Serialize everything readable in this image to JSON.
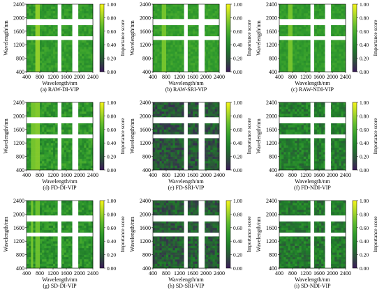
{
  "figure": {
    "colorscale": {
      "stops": [
        "#3b1a5a",
        "#2d4f3c",
        "#1f7a2a",
        "#2f9a2c",
        "#5cba2e",
        "#a8d82a",
        "#f5f51a"
      ],
      "range": [
        0,
        1
      ],
      "label": "Importance score",
      "tick_labels": [
        "1.00",
        "0.80",
        "0.60",
        "0.40",
        "0.20",
        "0.00"
      ],
      "tick_values": [
        1.0,
        0.8,
        0.6,
        0.4,
        0.2,
        0.0
      ]
    },
    "gap_color": "#ffffff"
  },
  "chart_data": [
    {
      "type": "heatmap",
      "panel": "a",
      "caption": "(a) RAW-DI-VIP",
      "xlabel": "Wavelength/nm",
      "ylabel": "Wavelength/nm",
      "xlim": [
        400,
        2400
      ],
      "ylim": [
        400,
        2400
      ],
      "xticks": [
        "400",
        "800",
        "1200",
        "1600",
        "2000",
        "2400"
      ],
      "yticks": [
        "400",
        "800",
        "1200",
        "1600",
        "2000",
        "2400"
      ],
      "masked_bands": [
        [
          1340,
          1450
        ],
        [
          1780,
          1960
        ]
      ],
      "base_score": 0.5,
      "noise": 0.08,
      "stripes": [
        [
          700,
          0.9
        ],
        [
          720,
          0.78
        ]
      ]
    },
    {
      "type": "heatmap",
      "panel": "b",
      "caption": "(b) RAW-SRI-VIP",
      "xlabel": "Wavelength/nm",
      "ylabel": "Wavelength/nm",
      "xlim": [
        400,
        2400
      ],
      "ylim": [
        400,
        2400
      ],
      "xticks": [
        "400",
        "800",
        "1200",
        "1600",
        "2000",
        "2400"
      ],
      "yticks": [
        "400",
        "800",
        "1200",
        "1600",
        "2000",
        "2400"
      ],
      "masked_bands": [
        [
          1340,
          1450
        ],
        [
          1780,
          1960
        ]
      ],
      "base_score": 0.52,
      "noise": 0.06,
      "stripes": [
        [
          700,
          0.82
        ],
        [
          720,
          0.72
        ]
      ]
    },
    {
      "type": "heatmap",
      "panel": "c",
      "caption": "(c) RAW-NDI-VIP",
      "xlabel": "Wavelength/nm",
      "ylabel": "Wavelength/nm",
      "xlim": [
        400,
        2400
      ],
      "ylim": [
        400,
        2400
      ],
      "xticks": [
        "400",
        "800",
        "1200",
        "1600",
        "2000",
        "2400"
      ],
      "yticks": [
        "400",
        "800",
        "1200",
        "1600",
        "2000",
        "2400"
      ],
      "masked_bands": [
        [
          1340,
          1450
        ],
        [
          1780,
          1960
        ]
      ],
      "base_score": 0.5,
      "noise": 0.06,
      "stripes": [
        [
          700,
          0.82
        ],
        [
          720,
          0.72
        ]
      ]
    },
    {
      "type": "heatmap",
      "panel": "d",
      "caption": "(d) FD-DI-VIP",
      "xlabel": "Wavelength/nm",
      "ylabel": "Wavelength/nm",
      "xlim": [
        400,
        2400
      ],
      "ylim": [
        400,
        2400
      ],
      "xticks": [
        "400",
        "800",
        "1200",
        "1600",
        "2000",
        "2400"
      ],
      "yticks": [
        "400",
        "800",
        "1200",
        "1600",
        "2000",
        "2400"
      ],
      "masked_bands": [
        [
          1340,
          1450
        ],
        [
          1780,
          1960
        ]
      ],
      "base_score": 0.48,
      "noise": 0.12,
      "stripes": [
        [
          560,
          0.7
        ],
        [
          600,
          0.72
        ],
        [
          700,
          0.85
        ],
        [
          740,
          0.75
        ]
      ]
    },
    {
      "type": "heatmap",
      "panel": "e",
      "caption": "(e) FD-SRI-VIP",
      "xlabel": "Wavelength/nm",
      "ylabel": "Wavelength/nm",
      "xlim": [
        400,
        2400
      ],
      "ylim": [
        400,
        2400
      ],
      "xticks": [
        "400",
        "800",
        "1200",
        "1600",
        "2000",
        "2400"
      ],
      "yticks": [
        "400",
        "800",
        "1200",
        "1600",
        "2000",
        "2400"
      ],
      "masked_bands": [
        [
          1340,
          1450
        ],
        [
          1780,
          1960
        ]
      ],
      "base_score": 0.2,
      "noise": 0.14,
      "stripes": []
    },
    {
      "type": "heatmap",
      "panel": "f",
      "caption": "(f) FD-NDI-VIP",
      "xlabel": "Wavelength/nm",
      "ylabel": "Wavelength/nm",
      "xlim": [
        400,
        2400
      ],
      "ylim": [
        400,
        2400
      ],
      "xticks": [
        "400",
        "800",
        "1200",
        "1600",
        "2000",
        "2400"
      ],
      "yticks": [
        "400",
        "800",
        "1200",
        "1600",
        "2000",
        "2400"
      ],
      "masked_bands": [
        [
          1340,
          1450
        ],
        [
          1780,
          1960
        ]
      ],
      "base_score": 0.36,
      "noise": 0.14,
      "stripes": []
    },
    {
      "type": "heatmap",
      "panel": "g",
      "caption": "(g) SD-DI-VIP",
      "xlabel": "Wavelength/nm",
      "ylabel": "Wavelength/nm",
      "xlim": [
        400,
        2400
      ],
      "ylim": [
        400,
        2400
      ],
      "xticks": [
        "400",
        "800",
        "1200",
        "1600",
        "2000",
        "2400"
      ],
      "yticks": [
        "400",
        "800",
        "1200",
        "1600",
        "2000",
        "2400"
      ],
      "masked_bands": [
        [
          1340,
          1450
        ],
        [
          1780,
          1960
        ]
      ],
      "base_score": 0.46,
      "noise": 0.12,
      "stripes": [
        [
          560,
          0.72
        ],
        [
          700,
          0.88
        ],
        [
          740,
          0.7
        ]
      ]
    },
    {
      "type": "heatmap",
      "panel": "h",
      "caption": "(h) SD-SRI-VIP",
      "xlabel": "Wavelength/nm",
      "ylabel": "Wavelength/nm",
      "xlim": [
        400,
        2400
      ],
      "ylim": [
        400,
        2400
      ],
      "xticks": [
        "400",
        "800",
        "1200",
        "1600",
        "2000",
        "2400"
      ],
      "yticks": [
        "400",
        "800",
        "1200",
        "1600",
        "2000",
        "2400"
      ],
      "masked_bands": [
        [
          1340,
          1450
        ],
        [
          1780,
          1960
        ]
      ],
      "base_score": 0.22,
      "noise": 0.14,
      "stripes": []
    },
    {
      "type": "heatmap",
      "panel": "i",
      "caption": "(i) SD-NDI-VIP",
      "xlabel": "Wavelength/nm",
      "ylabel": "Wavelength/nm",
      "xlim": [
        400,
        2400
      ],
      "ylim": [
        400,
        2400
      ],
      "xticks": [
        "400",
        "800",
        "1200",
        "1600",
        "2000",
        "2400"
      ],
      "yticks": [
        "400",
        "800",
        "1200",
        "1600",
        "2000",
        "2400"
      ],
      "masked_bands": [
        [
          1340,
          1450
        ],
        [
          1780,
          1960
        ]
      ],
      "base_score": 0.34,
      "noise": 0.14,
      "stripes": []
    }
  ]
}
